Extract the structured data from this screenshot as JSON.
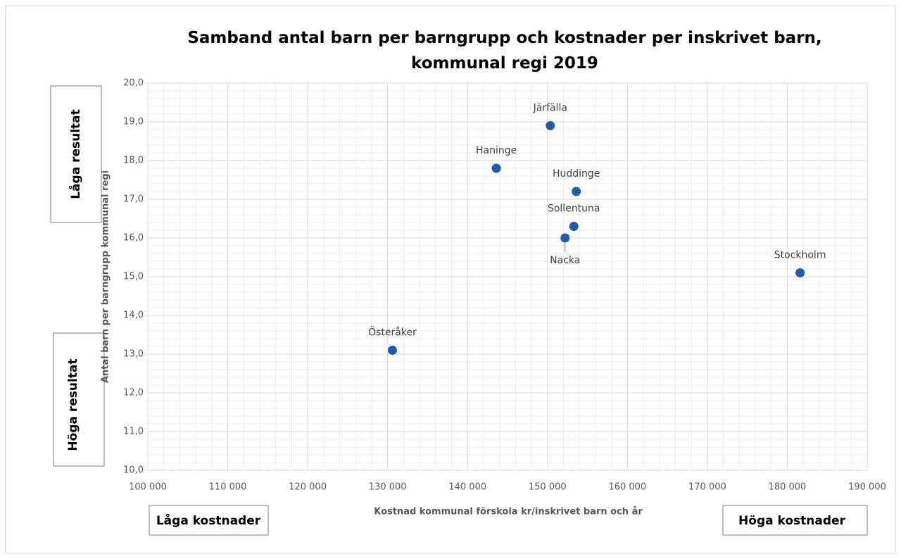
{
  "chart_data": {
    "type": "scatter",
    "title": "Samband antal barn per barngrupp och kostnader per inskrivet barn, kommunal regi 2019",
    "x_label": "Kostnad kommunal förskola kr/inskrivet barn och år",
    "y_label": "Antal barn per barngrupp kommunal regi",
    "annotations": {
      "top_left": "Låga resultat",
      "bottom_left": "Höga resultat",
      "low_cost": "Låga kostnader",
      "high_cost": "Höga kostnader"
    },
    "point_labels": [
      "Järfälla",
      "Haninge",
      "Huddinge",
      "Sollentuna",
      "Nacka",
      "Stockholm",
      "Österåker"
    ],
    "x": [
      150350,
      143600,
      153600,
      153300,
      152200,
      181600,
      130600
    ],
    "values": [
      18.9,
      17.8,
      17.2,
      16.3,
      16.0,
      15.1,
      13.1
    ],
    "color": "#1c5ea8",
    "xlim": [
      100000,
      190000
    ],
    "xticks": [
      {
        "value": 100000,
        "label": "100 000"
      },
      {
        "value": 110000,
        "label": "110 000"
      },
      {
        "value": 120000,
        "label": "120 000"
      },
      {
        "value": 130000,
        "label": "130 000"
      },
      {
        "value": 140000,
        "label": "140 000"
      },
      {
        "value": 150000,
        "label": "150 000"
      },
      {
        "value": 160000,
        "label": "160 000"
      },
      {
        "value": 170000,
        "label": "170 000"
      },
      {
        "value": 180000,
        "label": "180 000"
      },
      {
        "value": 190000,
        "label": "190 000"
      }
    ],
    "ylim": [
      10,
      20
    ],
    "yticks": [
      {
        "value": 10,
        "label": "10,0"
      },
      {
        "value": 11,
        "label": "11,0"
      },
      {
        "value": 12,
        "label": "12,0"
      },
      {
        "value": 13,
        "label": "13,0"
      },
      {
        "value": 14,
        "label": "14,0"
      },
      {
        "value": 15,
        "label": "15,0"
      },
      {
        "value": 16,
        "label": "16,0"
      },
      {
        "value": 17,
        "label": "17,0"
      },
      {
        "value": 18,
        "label": "18,0"
      },
      {
        "value": 19,
        "label": "19,0"
      },
      {
        "value": 20,
        "label": "20,0"
      }
    ],
    "grid": true,
    "minor_grid": true
  }
}
